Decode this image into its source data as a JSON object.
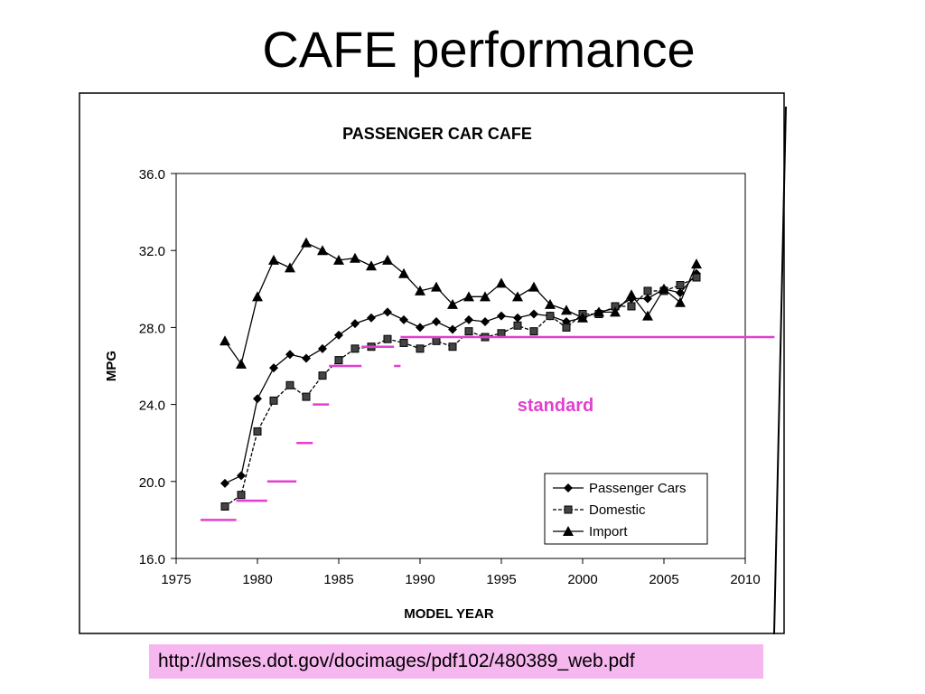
{
  "slide": {
    "title": "CAFE performance",
    "source_url": "http://dmses.dot.gov/docimages/pdf102/480389_web.pdf"
  },
  "chart_data": {
    "type": "line",
    "title": "PASSENGER CAR CAFE",
    "xlabel": "MODEL YEAR",
    "ylabel": "MPG",
    "xlim": [
      1975,
      2010
    ],
    "ylim": [
      16,
      36
    ],
    "x_ticks": [
      "1975",
      "1980",
      "1985",
      "1990",
      "1995",
      "2000",
      "2005",
      "2010"
    ],
    "y_ticks": [
      "16.0",
      "20.0",
      "24.0",
      "28.0",
      "32.0",
      "36.0"
    ],
    "legend_position": "bottom-right",
    "series": [
      {
        "name": "Passenger Cars",
        "marker": "diamond",
        "color": "#000000",
        "x": [
          1978,
          1979,
          1980,
          1981,
          1982,
          1983,
          1984,
          1985,
          1986,
          1987,
          1988,
          1989,
          1990,
          1991,
          1992,
          1993,
          1994,
          1995,
          1996,
          1997,
          1998,
          1999,
          2000,
          2001,
          2002,
          2003,
          2004,
          2005,
          2006,
          2007
        ],
        "y": [
          19.9,
          20.3,
          24.3,
          25.9,
          26.6,
          26.4,
          26.9,
          27.6,
          28.2,
          28.5,
          28.8,
          28.4,
          28.0,
          28.3,
          27.9,
          28.4,
          28.3,
          28.6,
          28.5,
          28.7,
          28.6,
          28.3,
          28.5,
          28.8,
          29.0,
          29.5,
          29.5,
          30.0,
          29.8,
          30.8
        ]
      },
      {
        "name": "Domestic",
        "marker": "square",
        "color": "#000000",
        "x": [
          1978,
          1979,
          1980,
          1981,
          1982,
          1983,
          1984,
          1985,
          1986,
          1987,
          1988,
          1989,
          1990,
          1991,
          1992,
          1993,
          1994,
          1995,
          1996,
          1997,
          1998,
          1999,
          2000,
          2001,
          2002,
          2003,
          2004,
          2005,
          2006,
          2007
        ],
        "y": [
          18.7,
          19.3,
          22.6,
          24.2,
          25.0,
          24.4,
          25.5,
          26.3,
          26.9,
          27.0,
          27.4,
          27.2,
          26.9,
          27.3,
          27.0,
          27.8,
          27.5,
          27.7,
          28.1,
          27.8,
          28.6,
          28.0,
          28.7,
          28.7,
          29.1,
          29.1,
          29.9,
          29.9,
          30.2,
          30.6
        ]
      },
      {
        "name": "Import",
        "marker": "triangle",
        "color": "#000000",
        "x": [
          1978,
          1979,
          1980,
          1981,
          1982,
          1983,
          1984,
          1985,
          1986,
          1987,
          1988,
          1989,
          1990,
          1991,
          1992,
          1993,
          1994,
          1995,
          1996,
          1997,
          1998,
          1999,
          2000,
          2001,
          2002,
          2003,
          2004,
          2005,
          2006,
          2007
        ],
        "y": [
          27.3,
          26.1,
          29.6,
          31.5,
          31.1,
          32.4,
          32.0,
          31.5,
          31.6,
          31.2,
          31.5,
          30.8,
          29.9,
          30.1,
          29.2,
          29.6,
          29.6,
          30.3,
          29.6,
          30.1,
          29.2,
          28.9,
          28.5,
          28.8,
          28.8,
          29.7,
          28.6,
          30.0,
          29.3,
          31.3
        ]
      }
    ],
    "standard": {
      "label": "standard",
      "color": "#e23fcf",
      "segments": [
        {
          "x_start": 1976.5,
          "x_end": 1978.7,
          "y": 18.0
        },
        {
          "x_start": 1978.7,
          "x_end": 1980.6,
          "y": 19.0
        },
        {
          "x_start": 1980.6,
          "x_end": 1982.4,
          "y": 20.0
        },
        {
          "x_start": 1982.4,
          "x_end": 1983.4,
          "y": 22.0
        },
        {
          "x_start": 1983.4,
          "x_end": 1984.4,
          "y": 24.0
        },
        {
          "x_start": 1984.4,
          "x_end": 1986.4,
          "y": 26.0
        },
        {
          "x_start": 1986.4,
          "x_end": 1988.4,
          "y": 27.0
        },
        {
          "x_start": 1988.4,
          "x_end": 1988.8,
          "y": 26.0
        },
        {
          "x_start": 1988.8,
          "x_end": 2011.8,
          "y": 27.5
        }
      ]
    }
  }
}
